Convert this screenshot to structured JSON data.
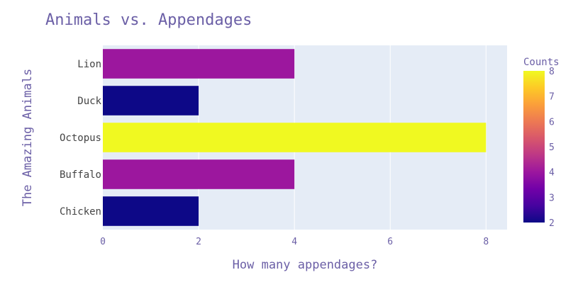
{
  "chart_data": {
    "type": "bar",
    "orientation": "horizontal",
    "title": "Animals vs. Appendages",
    "xlabel": "How many appendages?",
    "ylabel": "The Amazing Animals",
    "categories": [
      "Lion",
      "Duck",
      "Octopus",
      "Buffalo",
      "Chicken"
    ],
    "values": [
      4,
      2,
      8,
      4,
      2
    ],
    "xlim": [
      0,
      8.44
    ],
    "xticks": [
      0,
      2,
      4,
      6,
      8
    ],
    "grid": true,
    "colorbar": {
      "title": "Counts",
      "range": [
        2,
        8
      ],
      "ticks": [
        2,
        3,
        4,
        5,
        6,
        7,
        8
      ],
      "colorscale": [
        "#0d0887",
        "#46039f",
        "#7201a8",
        "#9c179e",
        "#bd3786",
        "#d8576b",
        "#ed7953",
        "#fb9f3a",
        "#fdca26",
        "#f0f921"
      ]
    },
    "colors": {
      "title": "#6b5fa6",
      "axis_text": "#6b5fa6",
      "plot_bg": "#e5ecf6",
      "grid": "#ffffff"
    }
  }
}
